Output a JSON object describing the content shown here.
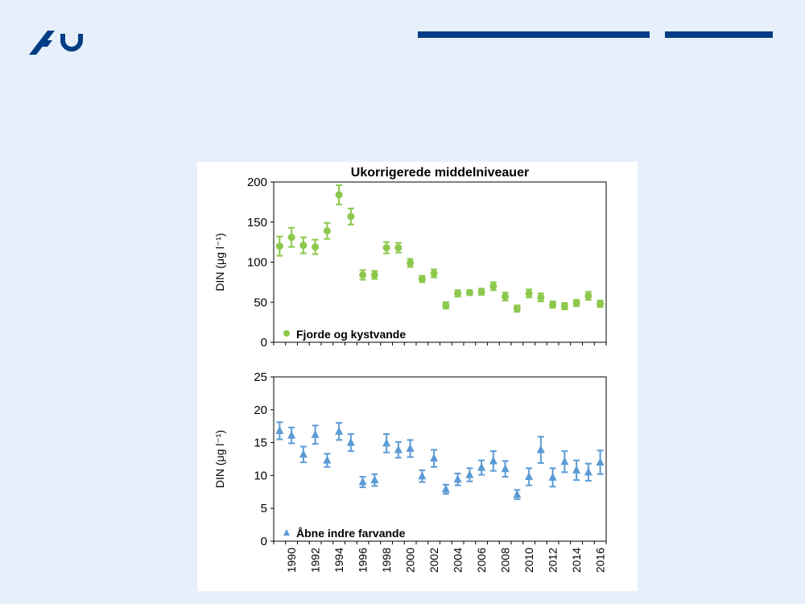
{
  "colors": {
    "background": "#e6effa",
    "brand": "#003d85",
    "green_series": "#8cc84b",
    "blue_series": "#5b9bd5"
  },
  "logo": {
    "icon": "au-logo-icon"
  },
  "chart_data": [
    {
      "type": "scatter",
      "title": "Ukorrigerede middelniveauer",
      "ylabel": "DIN (μg l⁻¹)",
      "ylim": [
        0,
        200
      ],
      "yticks": [
        "0",
        "50",
        "100",
        "150",
        "200"
      ],
      "x": [
        1989,
        1990,
        1991,
        1992,
        1993,
        1994,
        1995,
        1996,
        1997,
        1998,
        1999,
        2000,
        2001,
        2002,
        2003,
        2004,
        2005,
        2006,
        2007,
        2008,
        2009,
        2010,
        2011,
        2012,
        2013,
        2014,
        2015,
        2016
      ],
      "series": [
        {
          "name": "Fjorde og kystvande",
          "values": [
            120,
            131,
            121,
            119,
            139,
            184,
            157,
            84,
            84,
            118,
            118,
            99,
            79,
            86,
            46,
            61,
            62,
            63,
            70,
            57,
            42,
            61,
            56,
            47,
            45,
            49,
            58,
            48
          ],
          "err": [
            12,
            12,
            10,
            9,
            10,
            12,
            10,
            6,
            5,
            7,
            6,
            5,
            4,
            5,
            4,
            4,
            3,
            4,
            5,
            5,
            4,
            5,
            5,
            4,
            4,
            4,
            5,
            4
          ]
        }
      ]
    },
    {
      "type": "scatter",
      "ylabel": "DIN (μg l⁻¹)",
      "ylim": [
        0,
        25
      ],
      "yticks": [
        "0",
        "5",
        "10",
        "15",
        "20",
        "25"
      ],
      "x": [
        1989,
        1990,
        1991,
        1992,
        1993,
        1994,
        1995,
        1996,
        1997,
        1998,
        1999,
        2000,
        2001,
        2002,
        2003,
        2004,
        2005,
        2006,
        2007,
        2008,
        2009,
        2010,
        2011,
        2012,
        2013,
        2014,
        2015,
        2016
      ],
      "xticks": [
        "1990",
        "1992",
        "1994",
        "1996",
        "1998",
        "2000",
        "2002",
        "2004",
        "2006",
        "2008",
        "2010",
        "2012",
        "2014",
        "2016"
      ],
      "series": [
        {
          "name": "Åbne indre farvande",
          "values": [
            16.8,
            16.1,
            13.2,
            16.2,
            12.3,
            16.7,
            15.0,
            9.0,
            9.3,
            14.9,
            13.9,
            14.1,
            9.9,
            12.6,
            7.9,
            9.4,
            10.1,
            11.2,
            12.2,
            11.0,
            7.1,
            9.8,
            13.9,
            9.7,
            12.1,
            10.8,
            10.5,
            12.0
          ],
          "err": [
            1.3,
            1.2,
            1.2,
            1.4,
            1.0,
            1.3,
            1.3,
            0.8,
            0.9,
            1.4,
            1.2,
            1.3,
            0.9,
            1.3,
            0.7,
            0.9,
            1.0,
            1.1,
            1.5,
            1.2,
            0.7,
            1.3,
            2.0,
            1.4,
            1.6,
            1.5,
            1.3,
            1.8
          ]
        }
      ]
    }
  ]
}
